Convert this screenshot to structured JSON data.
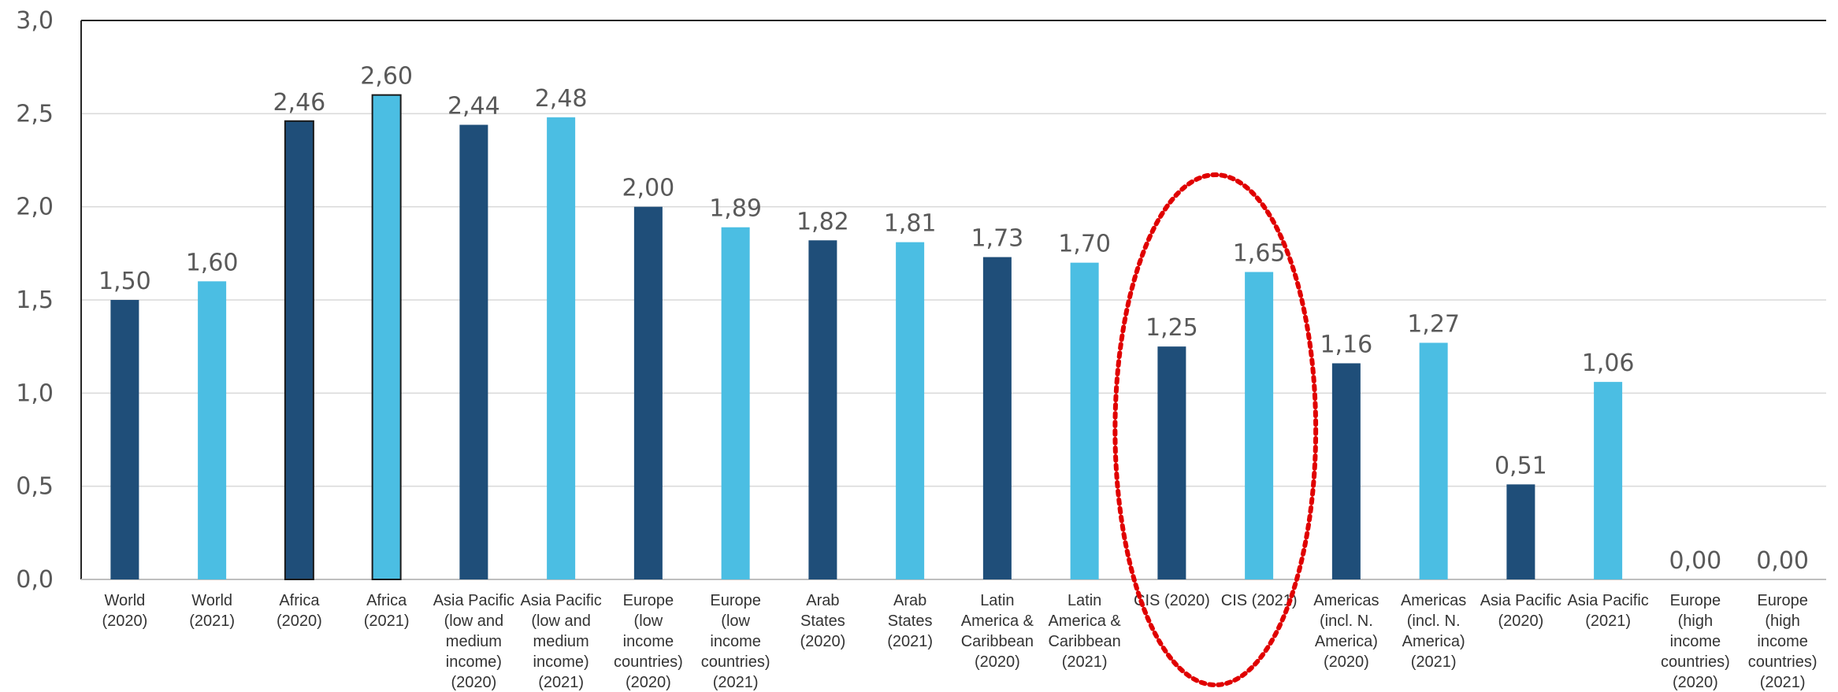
{
  "chart_data": {
    "type": "bar",
    "title": "",
    "xlabel": "",
    "ylabel": "",
    "ylim": [
      0,
      3.0
    ],
    "yticks": [
      "0,0",
      "0,5",
      "1,0",
      "1,5",
      "2,0",
      "2,5",
      "3,0"
    ],
    "grid": true,
    "legend": "none",
    "colors": {
      "year_2020": "#1f4e79",
      "year_2021": "#4bbee3",
      "highlight": "#e00000"
    },
    "categories": [
      [
        "World",
        "(2020)"
      ],
      [
        "World",
        "(2021)"
      ],
      [
        "Africa",
        "(2020)"
      ],
      [
        "Africa",
        "(2021)"
      ],
      [
        "Asia Pacific",
        "(low and",
        "medium",
        "income)",
        "(2020)"
      ],
      [
        "Asia Pacific",
        "(low and",
        "medium",
        "income)",
        "(2021)"
      ],
      [
        "Europe",
        "(low",
        "income",
        "countries)",
        "(2020)"
      ],
      [
        "Europe",
        "(low",
        "income",
        "countries)",
        "(2021)"
      ],
      [
        "Arab",
        "States",
        "(2020)"
      ],
      [
        "Arab",
        "States",
        "(2021)"
      ],
      [
        "Latin",
        "America &",
        "Caribbean",
        "(2020)"
      ],
      [
        "Latin",
        "America &",
        "Caribbean",
        "(2021)"
      ],
      [
        "CIS (2020)"
      ],
      [
        "CIS (2021)"
      ],
      [
        "Americas",
        "(incl. N.",
        "America)",
        "(2020)"
      ],
      [
        "Americas",
        "(incl. N.",
        "America)",
        "(2021)"
      ],
      [
        "Asia Pacific",
        "(2020)"
      ],
      [
        "Asia Pacific",
        "(2021)"
      ],
      [
        "Europe",
        "(high",
        "income",
        "countries)",
        "(2020)"
      ],
      [
        "Europe",
        "(high",
        "income",
        "countries)",
        "(2021)"
      ]
    ],
    "values": [
      1.5,
      1.6,
      2.46,
      2.6,
      2.44,
      2.48,
      2.0,
      1.89,
      1.82,
      1.81,
      1.73,
      1.7,
      1.25,
      1.65,
      1.16,
      1.27,
      0.51,
      1.06,
      0.0,
      0.0
    ],
    "value_labels": [
      "1,50",
      "1,60",
      "2,46",
      "2,60",
      "2,44",
      "2,48",
      "2,00",
      "1,89",
      "1,82",
      "1,81",
      "1,73",
      "1,70",
      "1,25",
      "1,65",
      "1,16",
      "1,27",
      "0,51",
      "1,06",
      "0,00",
      "0,00"
    ],
    "series_year": [
      "2020",
      "2021",
      "2020",
      "2021",
      "2020",
      "2021",
      "2020",
      "2021",
      "2020",
      "2021",
      "2020",
      "2021",
      "2020",
      "2021",
      "2020",
      "2021",
      "2020",
      "2021",
      "2020",
      "2021"
    ],
    "annotations": [
      {
        "type": "dotted-ellipse",
        "around_categories": [
          12,
          13
        ],
        "color": "#e00000"
      }
    ]
  }
}
